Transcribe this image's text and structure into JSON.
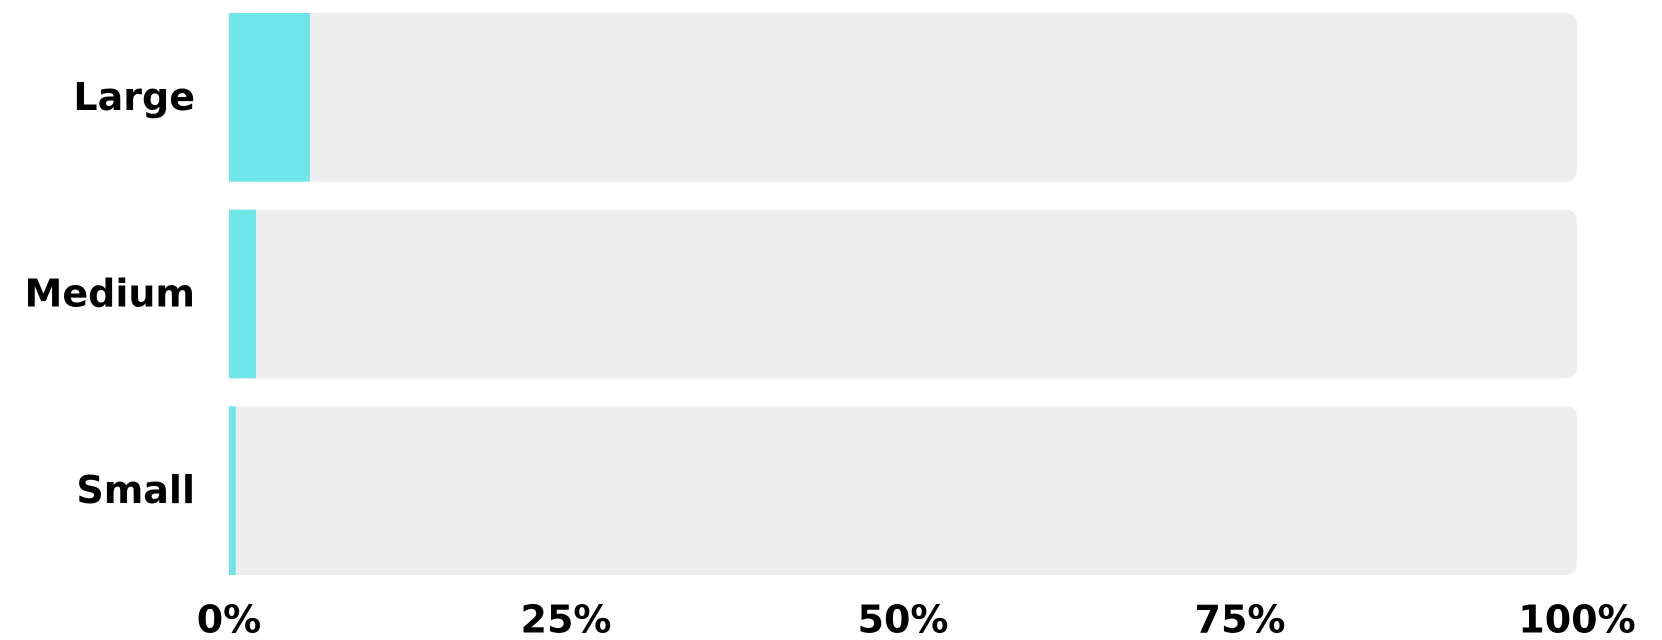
{
  "chart_data": {
    "type": "bar",
    "orientation": "horizontal",
    "categories": [
      "Large",
      "Medium",
      "Small"
    ],
    "values": [
      6,
      2,
      0.5
    ],
    "color": "#6ee6e9",
    "xlim": [
      0,
      100
    ],
    "xticks": [
      {
        "value": 0,
        "label": "0%"
      },
      {
        "value": 25,
        "label": "25%"
      },
      {
        "value": 50,
        "label": "50%"
      },
      {
        "value": 75,
        "label": "75%"
      },
      {
        "value": 100,
        "label": "100%"
      }
    ]
  }
}
